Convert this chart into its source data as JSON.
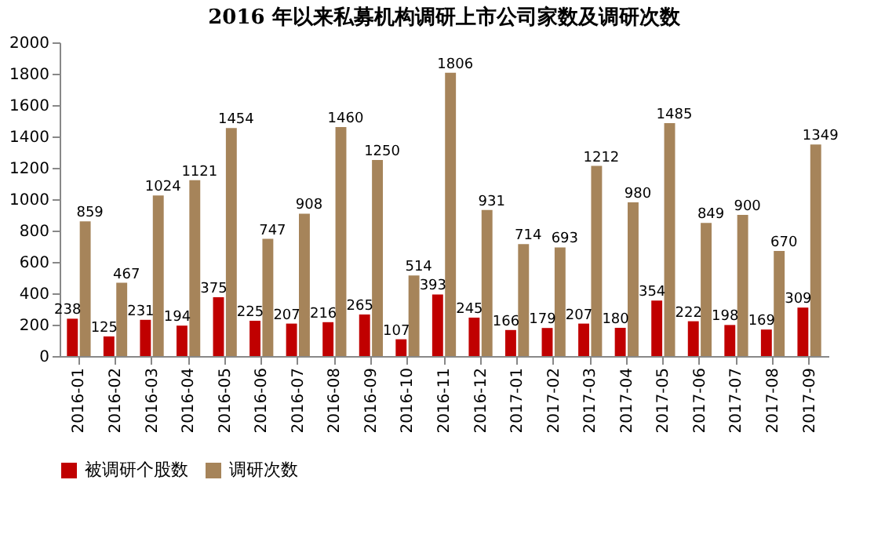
{
  "chart_data": {
    "type": "bar",
    "title": "2016 年以来私募机构调研上市公司家数及调研次数",
    "categories": [
      "2016-01",
      "2016-02",
      "2016-03",
      "2016-04",
      "2016-05",
      "2016-06",
      "2016-07",
      "2016-08",
      "2016-09",
      "2016-10",
      "2016-11",
      "2016-12",
      "2017-01",
      "2017-02",
      "2017-03",
      "2017-04",
      "2017-05",
      "2017-06",
      "2017-07",
      "2017-08",
      "2017-09"
    ],
    "series": [
      {
        "name": "被调研个股数",
        "color": "#c00000",
        "values": [
          238,
          125,
          231,
          194,
          375,
          225,
          207,
          216,
          265,
          107,
          393,
          245,
          166,
          179,
          207,
          180,
          354,
          222,
          198,
          169,
          309
        ]
      },
      {
        "name": "调研次数",
        "color": "#a6845a",
        "values": [
          859,
          467,
          1024,
          1121,
          1454,
          747,
          908,
          1460,
          1250,
          514,
          1806,
          931,
          714,
          693,
          1212,
          980,
          1485,
          849,
          900,
          670,
          1349
        ]
      }
    ],
    "ylim": [
      0,
      2000
    ],
    "yticks": [
      0,
      200,
      400,
      600,
      800,
      1000,
      1200,
      1400,
      1600,
      1800,
      2000
    ],
    "data_labels": true,
    "grid": false,
    "legend": "bottom"
  }
}
